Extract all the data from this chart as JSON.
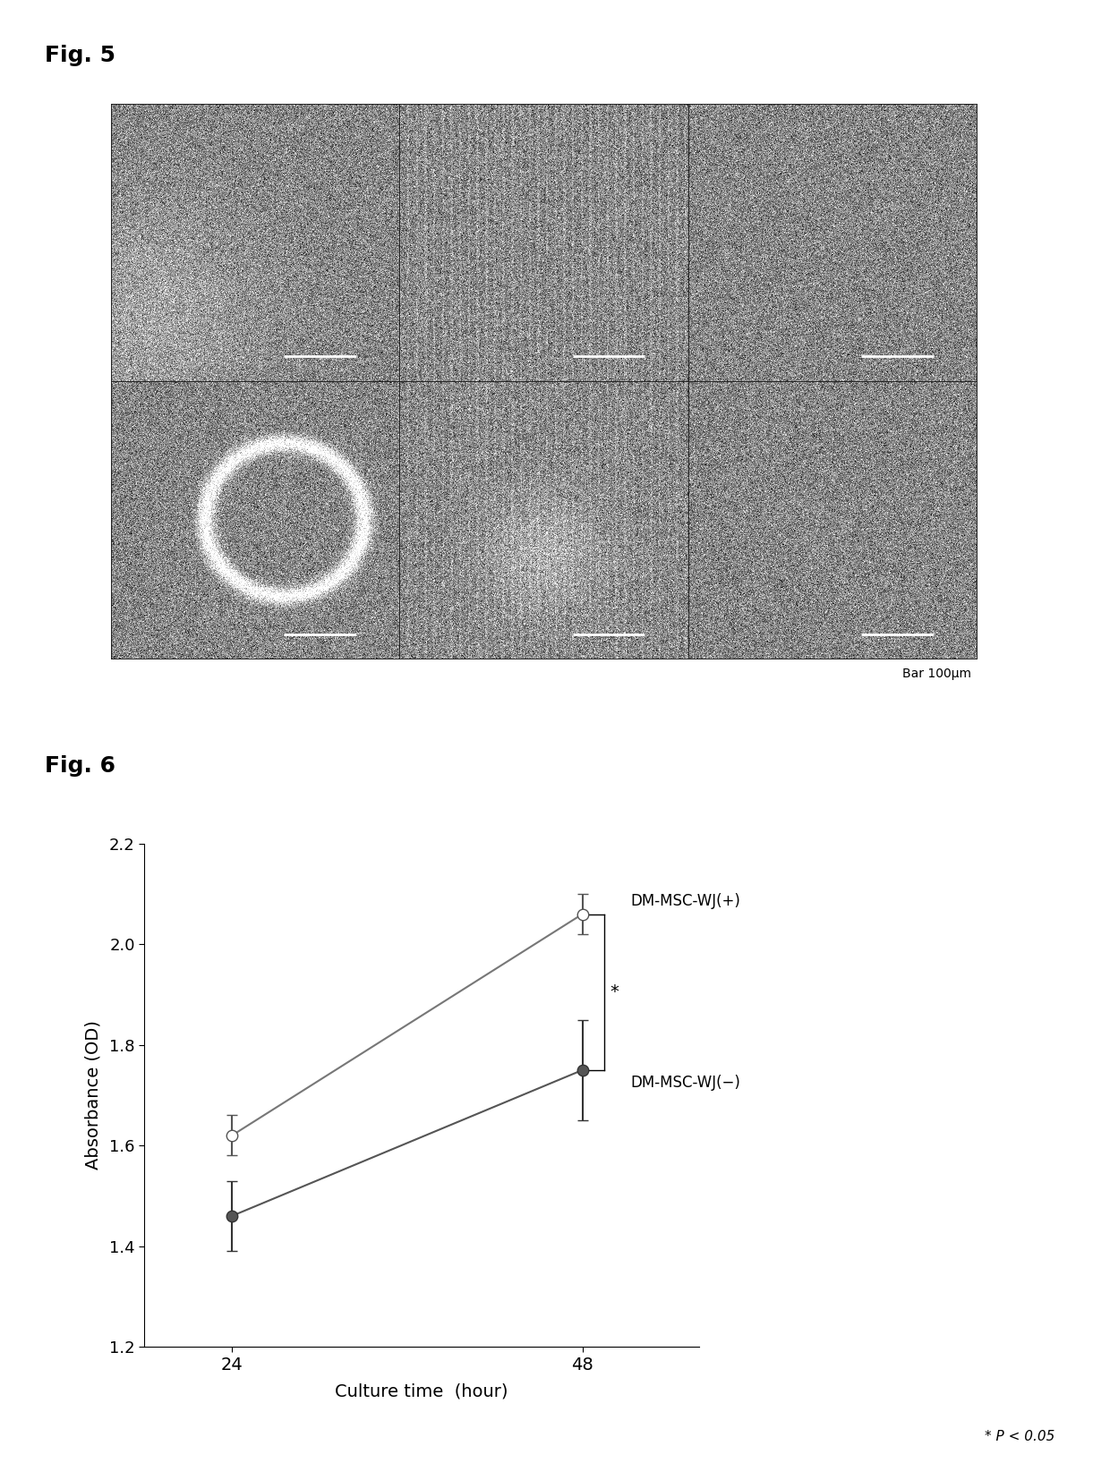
{
  "fig5_label": "Fig. 5",
  "fig6_label": "Fig. 6",
  "bar_label": "Bar 100μm",
  "fig6_xlabel": "Culture time  (hour)",
  "fig6_ylabel": "Absorbance (OD)",
  "xtick_labels": [
    "24",
    "48"
  ],
  "xvalues": [
    24,
    48
  ],
  "ylim": [
    1.2,
    2.2
  ],
  "yticks": [
    1.2,
    1.4,
    1.6,
    1.8,
    2.0,
    2.2
  ],
  "series_plus": {
    "label": "DM-MSC-WJ(+)",
    "x": [
      24,
      48
    ],
    "y": [
      1.62,
      2.06
    ],
    "yerr": [
      0.04,
      0.04
    ],
    "color": "#777777",
    "marker": "o",
    "markerfacecolor": "white",
    "markeredgecolor": "#555555",
    "markersize": 9,
    "linewidth": 1.5
  },
  "series_minus": {
    "label": "DM-MSC-WJ(−)",
    "x": [
      24,
      48
    ],
    "y": [
      1.46,
      1.75
    ],
    "yerr": [
      0.07,
      0.1
    ],
    "color": "#555555",
    "marker": "o",
    "markerfacecolor": "#555555",
    "markeredgecolor": "#333333",
    "markersize": 9,
    "linewidth": 1.5
  },
  "pvalue_text": "* P < 0.05",
  "background_color": "#ffffff",
  "noise_seed": 42
}
